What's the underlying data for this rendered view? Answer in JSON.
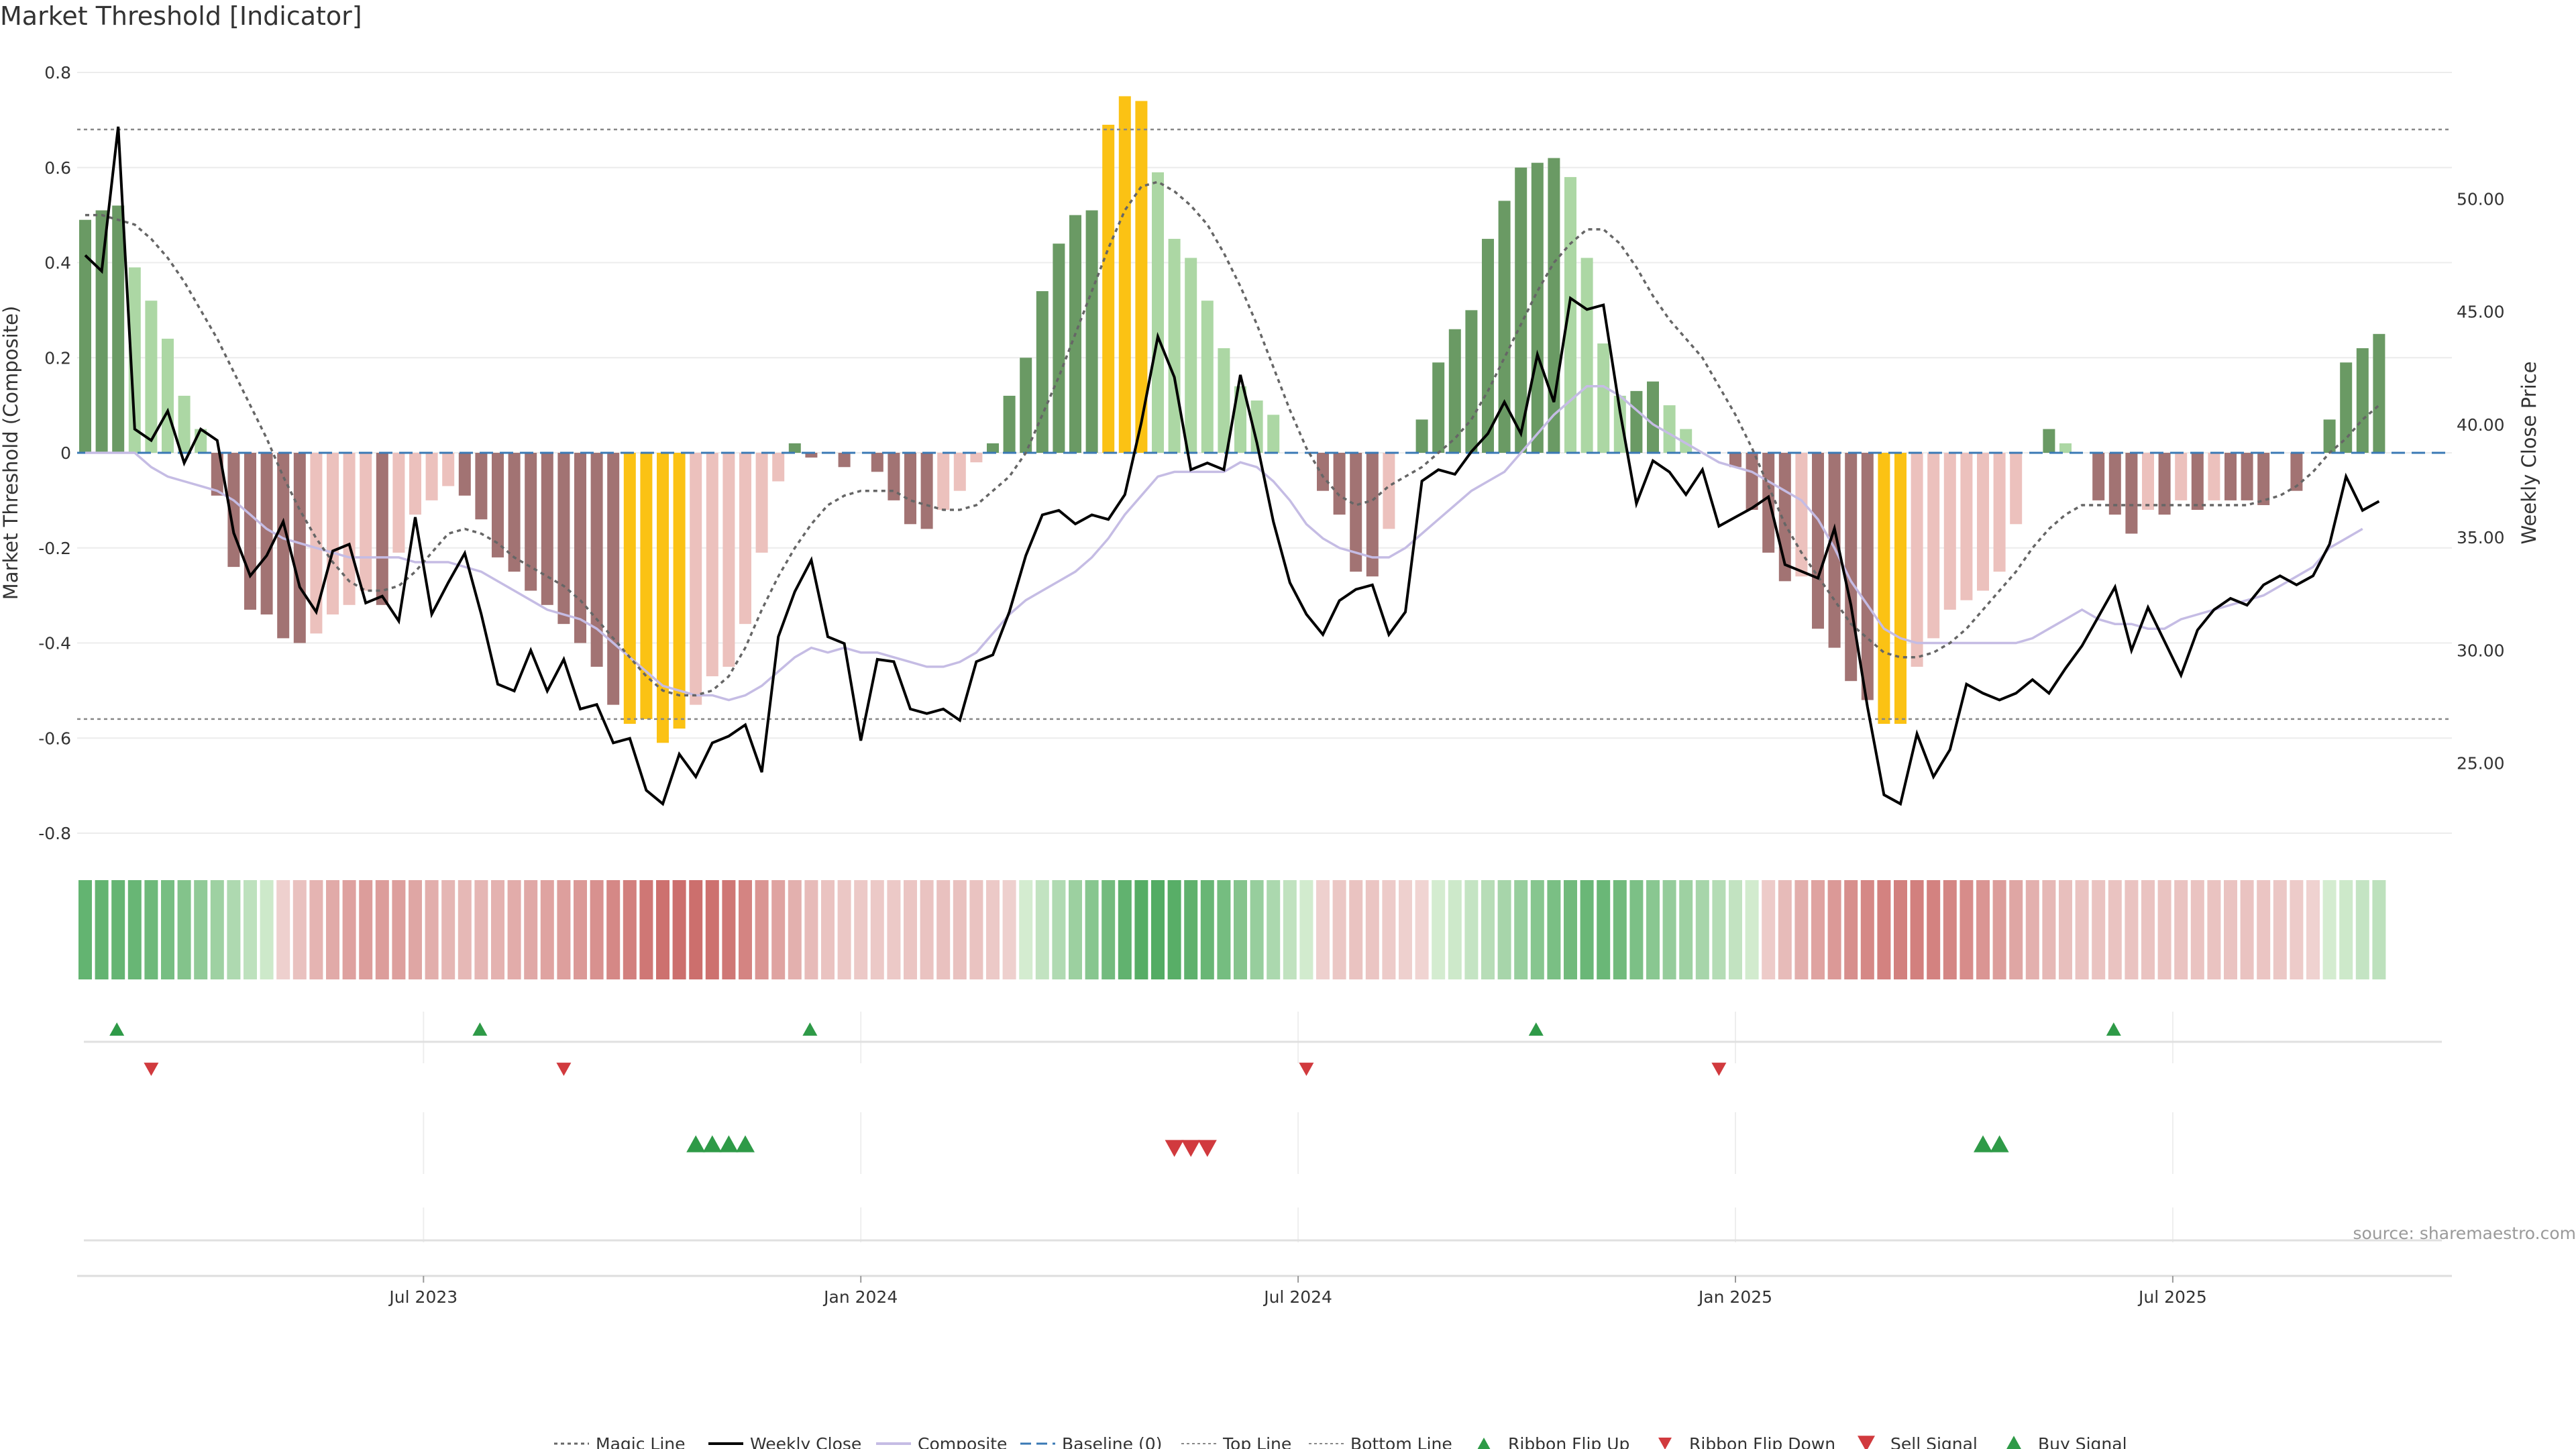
{
  "title": "Market Threshold [Indicator]",
  "source": "source: sharemaestro.com",
  "chart_data": {
    "type": "bar",
    "left_axis": {
      "label": "Market Threshold (Composite)",
      "range": [
        -0.8,
        0.8
      ],
      "ticks": [
        "0.8",
        "0.6",
        "0.4",
        "0.2",
        "0",
        "-0.2",
        "-0.4",
        "-0.6",
        "-0.8"
      ]
    },
    "right_axis": {
      "label": "Weekly Close Price",
      "range": [
        21.9,
        55.6
      ],
      "ticks": [
        "50.00",
        "45.00",
        "40.00",
        "35.00",
        "30.00",
        "25.00"
      ]
    },
    "x_ticks": [
      "Jul 2023",
      "Jan 2024",
      "Jul 2024",
      "Jan 2025",
      "Jul 2025"
    ],
    "top_line": 0.68,
    "bottom_line": -0.56,
    "bars": [
      0.49,
      0.51,
      0.52,
      0.39,
      0.32,
      0.24,
      0.12,
      0.05,
      -0.09,
      -0.24,
      -0.33,
      -0.34,
      -0.39,
      -0.4,
      -0.38,
      -0.34,
      -0.32,
      -0.29,
      -0.32,
      -0.21,
      -0.13,
      -0.1,
      -0.07,
      -0.09,
      -0.14,
      -0.22,
      -0.25,
      -0.29,
      -0.32,
      -0.36,
      -0.4,
      -0.45,
      -0.53,
      -0.57,
      -0.56,
      -0.61,
      -0.58,
      -0.53,
      -0.47,
      -0.45,
      -0.36,
      -0.21,
      -0.06,
      0.02,
      -0.01,
      0,
      -0.03,
      0,
      -0.04,
      -0.1,
      -0.15,
      -0.16,
      -0.12,
      -0.08,
      -0.02,
      0.02,
      0.12,
      0.2,
      0.34,
      0.44,
      0.5,
      0.51,
      0.69,
      0.75,
      0.74,
      0.59,
      0.45,
      0.41,
      0.32,
      0.22,
      0.14,
      0.11,
      0.08,
      0,
      0,
      -0.08,
      -0.13,
      -0.25,
      -0.26,
      -0.16,
      0,
      0.07,
      0.19,
      0.26,
      0.3,
      0.45,
      0.53,
      0.6,
      0.61,
      0.62,
      0.58,
      0.41,
      0.23,
      0.12,
      0.13,
      0.15,
      0.1,
      0.05,
      0,
      0,
      -0.03,
      -0.12,
      -0.21,
      -0.27,
      -0.26,
      -0.37,
      -0.41,
      -0.48,
      -0.52,
      -0.57,
      -0.57,
      -0.45,
      -0.39,
      -0.33,
      -0.31,
      -0.29,
      -0.25,
      -0.15,
      0,
      0.05,
      0.02,
      0,
      -0.1,
      -0.13,
      -0.17,
      -0.12,
      -0.13,
      -0.1,
      -0.12,
      -0.1,
      -0.1,
      -0.1,
      -0.11,
      0,
      -0.08,
      0,
      0.07,
      0.19,
      0.22,
      0.25
    ],
    "buy_signals": [
      37,
      38,
      39,
      40,
      115,
      116
    ],
    "sell_signals": [
      66,
      67,
      68
    ],
    "ribbon_flip_up": [
      2,
      24,
      44,
      88,
      123
    ],
    "ribbon_flip_down": [
      4,
      29,
      74,
      99
    ],
    "series": [
      {
        "name": "Magic Line",
        "axis": "left",
        "values": [
          0.5,
          0.5,
          0.49,
          0.48,
          0.45,
          0.41,
          0.36,
          0.3,
          0.24,
          0.17,
          0.1,
          0.03,
          -0.05,
          -0.12,
          -0.18,
          -0.23,
          -0.27,
          -0.29,
          -0.29,
          -0.28,
          -0.25,
          -0.21,
          -0.17,
          -0.16,
          -0.17,
          -0.19,
          -0.22,
          -0.24,
          -0.26,
          -0.28,
          -0.31,
          -0.35,
          -0.39,
          -0.43,
          -0.47,
          -0.5,
          -0.51,
          -0.51,
          -0.5,
          -0.47,
          -0.41,
          -0.33,
          -0.26,
          -0.2,
          -0.15,
          -0.11,
          -0.09,
          -0.08,
          -0.08,
          -0.08,
          -0.1,
          -0.11,
          -0.12,
          -0.12,
          -0.11,
          -0.08,
          -0.05,
          0,
          0.08,
          0.16,
          0.25,
          0.34,
          0.43,
          0.51,
          0.56,
          0.57,
          0.55,
          0.52,
          0.48,
          0.42,
          0.35,
          0.27,
          0.18,
          0.09,
          0.01,
          -0.05,
          -0.09,
          -0.11,
          -0.1,
          -0.07,
          -0.05,
          -0.03,
          0,
          0.03,
          0.07,
          0.13,
          0.2,
          0.27,
          0.34,
          0.4,
          0.44,
          0.47,
          0.47,
          0.44,
          0.39,
          0.33,
          0.28,
          0.24,
          0.2,
          0.14,
          0.08,
          0.01,
          -0.07,
          -0.15,
          -0.21,
          -0.26,
          -0.31,
          -0.36,
          -0.39,
          -0.42,
          -0.43,
          -0.43,
          -0.42,
          -0.4,
          -0.37,
          -0.33,
          -0.29,
          -0.25,
          -0.2,
          -0.16,
          -0.13,
          -0.11,
          -0.11,
          -0.11,
          -0.11,
          -0.11,
          -0.11,
          -0.11,
          -0.11,
          -0.11,
          -0.11,
          -0.11,
          -0.1,
          -0.09,
          -0.07,
          -0.04,
          0,
          0.03,
          0.07,
          0.1
        ]
      },
      {
        "name": "Weekly Close",
        "axis": "right",
        "values": [
          47.5,
          46.8,
          53.2,
          39.8,
          39.3,
          40.6,
          38.3,
          39.8,
          39.3,
          35.2,
          33.3,
          34.2,
          35.7,
          32.8,
          31.7,
          34.4,
          34.7,
          32.1,
          32.4,
          31.3,
          35.9,
          31.6,
          33.0,
          34.3,
          31.6,
          28.5,
          28.2,
          30.0,
          28.2,
          29.6,
          27.4,
          27.6,
          25.9,
          26.1,
          23.8,
          23.2,
          25.4,
          24.4,
          25.9,
          26.2,
          26.7,
          24.6,
          30.6,
          32.6,
          34.0,
          30.6,
          30.3,
          26.0,
          29.6,
          29.5,
          27.4,
          27.2,
          27.4,
          26.9,
          29.5,
          29.8,
          31.7,
          34.2,
          36.0,
          36.2,
          35.6,
          36.0,
          35.8,
          36.9,
          40.1,
          43.9,
          42.1,
          38.0,
          38.3,
          38.0,
          42.2,
          39.2,
          35.7,
          33.0,
          31.6,
          30.7,
          32.2,
          32.7,
          32.9,
          30.7,
          31.7,
          37.5,
          38.0,
          37.8,
          38.8,
          39.6,
          41.0,
          39.6,
          43.1,
          41.0,
          45.6,
          45.1,
          45.3,
          40.6,
          36.5,
          38.4,
          37.9,
          36.9,
          38.0,
          35.5,
          35.9,
          36.3,
          36.8,
          33.8,
          33.5,
          33.2,
          35.4,
          32.0,
          27.5,
          23.6,
          23.2,
          26.3,
          24.4,
          25.6,
          28.5,
          28.1,
          27.8,
          28.1,
          28.7,
          28.1,
          29.2,
          30.2,
          31.5,
          32.8,
          30.0,
          31.9,
          30.4,
          28.9,
          30.9,
          31.8,
          32.3,
          32.0,
          32.9,
          33.3,
          32.9,
          33.3,
          34.7,
          37.7,
          36.2,
          36.6
        ]
      },
      {
        "name": "Composite",
        "axis": "left",
        "values": [
          0,
          0,
          0,
          0,
          -0.03,
          -0.05,
          -0.06,
          -0.07,
          -0.08,
          -0.1,
          -0.13,
          -0.16,
          -0.18,
          -0.19,
          -0.2,
          -0.21,
          -0.22,
          -0.22,
          -0.22,
          -0.22,
          -0.23,
          -0.23,
          -0.23,
          -0.24,
          -0.25,
          -0.27,
          -0.29,
          -0.31,
          -0.33,
          -0.34,
          -0.35,
          -0.37,
          -0.4,
          -0.43,
          -0.46,
          -0.49,
          -0.5,
          -0.51,
          -0.51,
          -0.52,
          -0.51,
          -0.49,
          -0.46,
          -0.43,
          -0.41,
          -0.42,
          -0.41,
          -0.42,
          -0.42,
          -0.43,
          -0.44,
          -0.45,
          -0.45,
          -0.44,
          -0.42,
          -0.38,
          -0.34,
          -0.31,
          -0.29,
          -0.27,
          -0.25,
          -0.22,
          -0.18,
          -0.13,
          -0.09,
          -0.05,
          -0.04,
          -0.04,
          -0.04,
          -0.04,
          -0.02,
          -0.03,
          -0.06,
          -0.1,
          -0.15,
          -0.18,
          -0.2,
          -0.21,
          -0.22,
          -0.22,
          -0.2,
          -0.17,
          -0.14,
          -0.11,
          -0.08,
          -0.06,
          -0.04,
          0,
          0.04,
          0.08,
          0.11,
          0.14,
          0.14,
          0.12,
          0.09,
          0.06,
          0.04,
          0.02,
          0,
          -0.02,
          -0.03,
          -0.04,
          -0.06,
          -0.08,
          -0.1,
          -0.14,
          -0.2,
          -0.27,
          -0.32,
          -0.37,
          -0.39,
          -0.4,
          -0.4,
          -0.4,
          -0.4,
          -0.4,
          -0.4,
          -0.4,
          -0.39,
          -0.37,
          -0.35,
          -0.33,
          -0.35,
          -0.36,
          -0.36,
          -0.37,
          -0.37,
          -0.35,
          -0.34,
          -0.33,
          -0.32,
          -0.31,
          -0.3,
          -0.28,
          -0.26,
          -0.24,
          -0.2,
          -0.18,
          -0.16
        ]
      },
      {
        "name": "Baseline (0)",
        "axis": "left",
        "value": 0
      }
    ],
    "legend": [
      "Magic Line",
      "Weekly Close",
      "Composite",
      "Baseline (0)",
      "Top Line",
      "Bottom Line",
      "Ribbon Flip Up",
      "Ribbon Flip Down",
      "Sell Signal",
      "Buy Signal"
    ],
    "legend_position": "bottom",
    "colors": {
      "up_strong": "#6a9a64",
      "up_light": "#acd7a4",
      "down_strong": "#a27373",
      "down_light": "#ecc1bd",
      "extreme": "#fbc214",
      "close": "#000000",
      "composite": "#c5bce4",
      "magic": "#666666",
      "baseline": "#3a79b5",
      "threshold": "#888888",
      "buy": "#2e9a47",
      "sell": "#d13a3e"
    }
  }
}
